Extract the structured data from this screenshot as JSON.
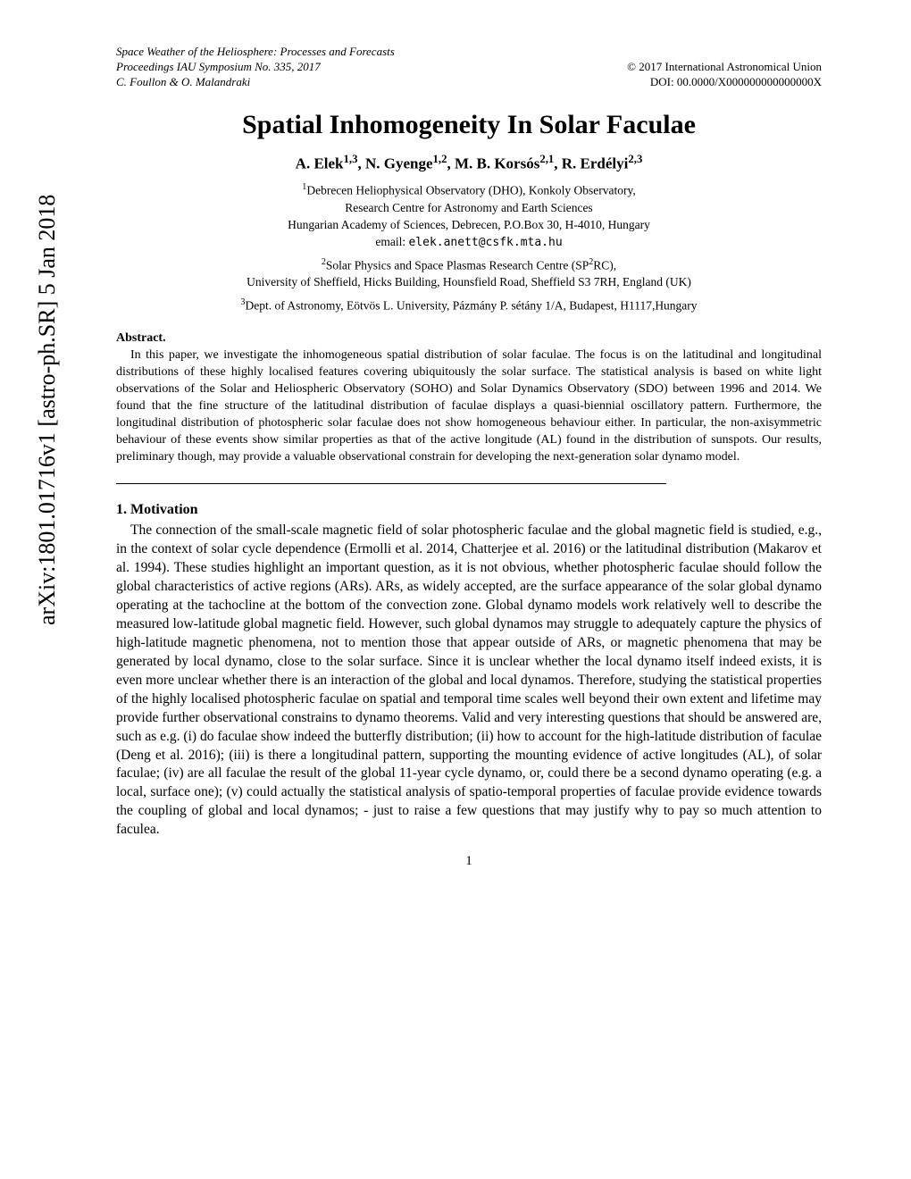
{
  "arxiv": "arXiv:1801.01716v1  [astro-ph.SR]  5 Jan 2018",
  "header": {
    "line1": "Space Weather of the Heliosphere: Processes and Forecasts",
    "line2_left": "Proceedings IAU Symposium No. 335, 2017",
    "line2_right": "© 2017 International Astronomical Union",
    "line3_left": "C. Foullon & O. Malandraki",
    "line3_right": "DOI: 00.0000/X000000000000000X"
  },
  "title": "Spatial Inhomogeneity In Solar Faculae",
  "authors": "A. Elek",
  "author_sup1": "1,3",
  "author2": ", N. Gyenge",
  "author_sup2": "1,2",
  "author3": ", M. B. Korsós",
  "author_sup3": "2,1",
  "author4": ", R. Erdélyi",
  "author_sup4": "2,3",
  "aff1_sup": "1",
  "aff1": "Debrecen Heliophysical Observatory (DHO), Konkoly Observatory,",
  "aff1b": "Research Centre for Astronomy and Earth Sciences",
  "aff1c": "Hungarian Academy of Sciences, Debrecen, P.O.Box 30, H-4010, Hungary",
  "email_label": "email: ",
  "email": "elek.anett@csfk.mta.hu",
  "aff2_sup": "2",
  "aff2": "Solar Physics and Space Plasmas Research Centre (SP",
  "aff2_sup_in": "2",
  "aff2_end": "RC),",
  "aff2b": "University of Sheffield, Hicks Building, Hounsfield Road, Sheffield S3 7RH, England (UK)",
  "aff3_sup": "3",
  "aff3": "Dept. of Astronomy, Eötvös L. University, Pázmány P. sétány 1/A, Budapest, H1117,Hungary",
  "abstract_label": "Abstract.",
  "abstract": "In this paper, we investigate the inhomogeneous spatial distribution of solar faculae. The focus is on the latitudinal and longitudinal distributions of these highly localised features covering ubiquitously the solar surface. The statistical analysis is based on white light observations of the Solar and Heliospheric Observatory (SOHO) and Solar Dynamics Observatory (SDO) between 1996 and 2014. We found that the fine structure of the latitudinal distribution of faculae displays a quasi-biennial oscillatory pattern. Furthermore, the longitudinal distribution of photospheric solar faculae does not show homogeneous behaviour either. In particular, the non-axisymmetric behaviour of these events show similar properties as that of the active longitude (AL) found in the distribution of sunspots. Our results, preliminary though, may provide a valuable observational constrain for developing the next-generation solar dynamo model.",
  "section1_heading": "1. Motivation",
  "section1_body": "The connection of the small-scale magnetic field of solar photospheric faculae and the global magnetic field is studied, e.g., in the context of solar cycle dependence (Ermolli et al. 2014, Chatterjee et al. 2016) or the latitudinal distribution (Makarov et al. 1994). These studies highlight an important question, as it is not obvious, whether photospheric faculae should follow the global characteristics of active regions (ARs). ARs, as widely accepted, are the surface appearance of the solar global dynamo operating at the tachocline at the bottom of the convection zone. Global dynamo models work relatively well to describe the measured low-latitude global magnetic field. However, such global dynamos may struggle to adequately capture the physics of high-latitude magnetic phenomena, not to mention those that appear outside of ARs, or magnetic phenomena that may be generated by local dynamo, close to the solar surface. Since it is unclear whether the local dynamo itself indeed exists, it is even more unclear whether there is an interaction of the global and local dynamos. Therefore, studying the statistical properties of the highly localised photospheric faculae on spatial and temporal time scales well beyond their own extent and lifetime may provide further observational constrains to dynamo theorems. Valid and very interesting questions that should be answered are, such as e.g. (i) do faculae show indeed the butterfly distribution; (ii) how to account for the high-latitude distribution of faculae (Deng et al. 2016); (iii) is there a longitudinal pattern, supporting the mounting evidence of active longitudes (AL), of solar faculae; (iv) are all faculae the result of the global 11-year cycle dynamo, or, could there be a second dynamo operating (e.g. a local, surface one); (v) could actually the statistical analysis of spatio-temporal properties of faculae provide evidence towards the coupling of global and local dynamos; - just to raise a few questions that may justify why to pay so much attention to faculea.",
  "page_number": "1"
}
